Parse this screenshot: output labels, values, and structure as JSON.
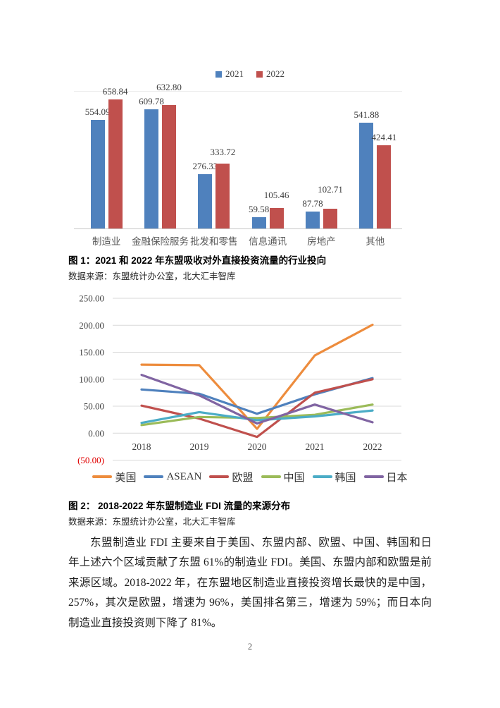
{
  "page": {
    "number": "2"
  },
  "figure1": {
    "caption": "图 1：2021 和 2022 年东盟吸收对外直接投资流量的行业投向",
    "source": "数据来源：东盟统计办公室，北大汇丰智库"
  },
  "figure2": {
    "caption": "图 2： 2018-2022 年东盟制造业 FDI 流量的来源分布",
    "source": "数据来源：东盟统计办公室，北大汇丰智库"
  },
  "body": {
    "lines": [
      "东盟制造业 FDI 主要来自于美国、东盟内部、欧盟、中国、韩国和日本，2022",
      "年上述六个区域贡献了东盟 61%的制造业 FDI。美国、东盟内部和欧盟是前三大",
      "来源区域。2018-2022 年，在东盟地区制造业直接投资增长最快的是中国，增速为",
      "257%，其次是欧盟，增速为 96%，美国排名第三，增速为 59%；而日本向东盟的",
      "制造业直接投资则下降了 81%。"
    ]
  },
  "colors": {
    "bar_2021": "#4F81BD",
    "bar_2022": "#C0504D",
    "gridline": "#D9D9D9",
    "axis_text": "#3f3f3f",
    "negative_tick": "#E00000"
  },
  "chart_data": [
    {
      "type": "bar",
      "title": "",
      "categories": [
        "制造业",
        "金融保险服务",
        "批发和零售",
        "信息通讯",
        "房地产",
        "其他"
      ],
      "series": [
        {
          "name": "2021",
          "color": "#4F81BD",
          "values": [
            554.09,
            609.78,
            276.33,
            59.58,
            87.78,
            541.88
          ]
        },
        {
          "name": "2022",
          "color": "#C0504D",
          "values": [
            658.84,
            632.8,
            333.72,
            105.46,
            102.71,
            424.41
          ]
        }
      ],
      "value_labels": true,
      "ylim": [
        0,
        700
      ],
      "legend_position": "top",
      "grid": false
    },
    {
      "type": "line",
      "title": "",
      "x": [
        "2018",
        "2019",
        "2020",
        "2021",
        "2022"
      ],
      "series": [
        {
          "name": "美国",
          "color": "#ED8C3D",
          "values": [
            127,
            126,
            8,
            144,
            201
          ]
        },
        {
          "name": "ASEAN",
          "color": "#4F81BD",
          "values": [
            81,
            73,
            36,
            72,
            102
          ]
        },
        {
          "name": "欧盟",
          "color": "#C0504D",
          "values": [
            51,
            27,
            -7,
            75,
            100
          ]
        },
        {
          "name": "中国",
          "color": "#9BBB59",
          "values": [
            15,
            30,
            28,
            34,
            53
          ]
        },
        {
          "name": "韩国",
          "color": "#4BACC6",
          "values": [
            19,
            39,
            24,
            31,
            42
          ]
        },
        {
          "name": "日本",
          "color": "#8064A2",
          "values": [
            108,
            70,
            18,
            53,
            20
          ]
        }
      ],
      "ylim": [
        -50,
        250
      ],
      "ytick_step": 50,
      "ytick_labels": [
        "250.00",
        "200.00",
        "150.00",
        "100.00",
        "50.00",
        "0.00",
        "(50.00)"
      ],
      "grid": true,
      "legend_position": "bottom"
    }
  ]
}
